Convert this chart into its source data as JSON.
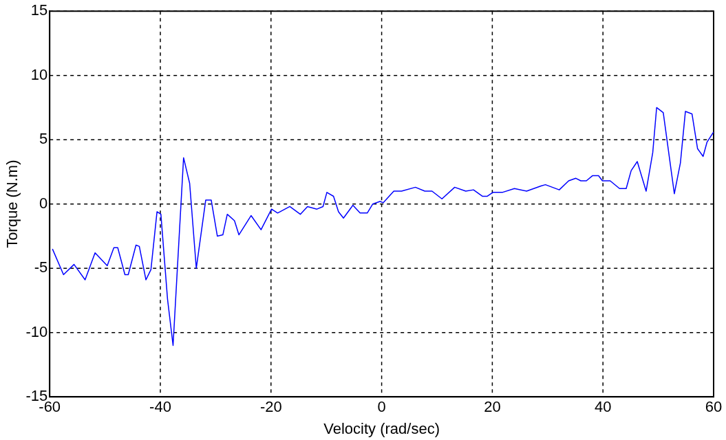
{
  "chart_data": {
    "type": "line",
    "xlabel": "Velocity (rad/sec)",
    "ylabel": "Torque (N.m)",
    "xlim": [
      -60,
      60
    ],
    "xticks": [
      -60,
      -40,
      -20,
      0,
      20,
      40,
      60
    ],
    "ylim": [
      -15,
      15
    ],
    "yticks": [
      -15,
      -10,
      -5,
      0,
      5,
      10,
      15
    ],
    "grid": true,
    "legend": false,
    "marker": "none",
    "line_style": "solid",
    "series": [
      {
        "color": "#0000ff",
        "x": [
          -59.5,
          -57.5,
          -55.6,
          -53.6,
          -51.8,
          -49.6,
          -48.4,
          -47.7,
          -46.4,
          -45.8,
          -44.4,
          -43.8,
          -42.6,
          -41.7,
          -40.6,
          -39.9,
          -38.7,
          -37.7,
          -35.8,
          -34.7,
          -33.5,
          -31.8,
          -30.8,
          -29.7,
          -28.7,
          -27.9,
          -26.6,
          -25.8,
          -23.6,
          -21.8,
          -19.9,
          -18.8,
          -16.6,
          -14.7,
          -13.4,
          -11.7,
          -10.6,
          -9.9,
          -8.7,
          -7.8,
          -6.9,
          -5.2,
          -3.9,
          -2.6,
          -1.6,
          -0.3,
          0.3,
          2.2,
          3.6,
          6.1,
          7.8,
          9.1,
          10.9,
          13.2,
          15.2,
          16.6,
          18.2,
          19.1,
          20.1,
          21.8,
          24.0,
          26.2,
          28.8,
          29.6,
          32.1,
          33.8,
          35.1,
          36.0,
          37.0,
          38.1,
          39.2,
          39.9,
          41.3,
          43.0,
          44.2,
          45.1,
          46.2,
          47.8,
          49.0,
          49.7,
          50.9,
          52.9,
          54.0,
          54.9,
          56.1,
          57.1,
          58.1,
          58.8,
          60.0
        ],
        "values": [
          -3.5,
          -5.5,
          -4.7,
          -5.9,
          -3.8,
          -4.8,
          -3.4,
          -3.4,
          -5.5,
          -5.5,
          -3.2,
          -3.3,
          -5.9,
          -5.1,
          -0.6,
          -0.8,
          -7.4,
          -11.0,
          3.6,
          1.6,
          -5.0,
          0.3,
          0.3,
          -2.5,
          -2.4,
          -0.8,
          -1.3,
          -2.4,
          -0.9,
          -2.0,
          -0.4,
          -0.7,
          -0.2,
          -0.8,
          -0.2,
          -0.4,
          -0.2,
          0.9,
          0.6,
          -0.6,
          -1.1,
          -0.1,
          -0.7,
          -0.7,
          0.0,
          0.2,
          0.1,
          1.0,
          1.0,
          1.3,
          1.0,
          1.0,
          0.4,
          1.3,
          1.0,
          1.1,
          0.6,
          0.6,
          0.9,
          0.9,
          1.2,
          1.0,
          1.4,
          1.5,
          1.1,
          1.8,
          2.0,
          1.8,
          1.8,
          2.2,
          2.2,
          1.8,
          1.8,
          1.2,
          1.2,
          2.6,
          3.3,
          1.0,
          4.0,
          7.5,
          7.1,
          0.8,
          3.2,
          7.2,
          7.0,
          4.3,
          3.7,
          4.8,
          5.6
        ]
      }
    ]
  }
}
